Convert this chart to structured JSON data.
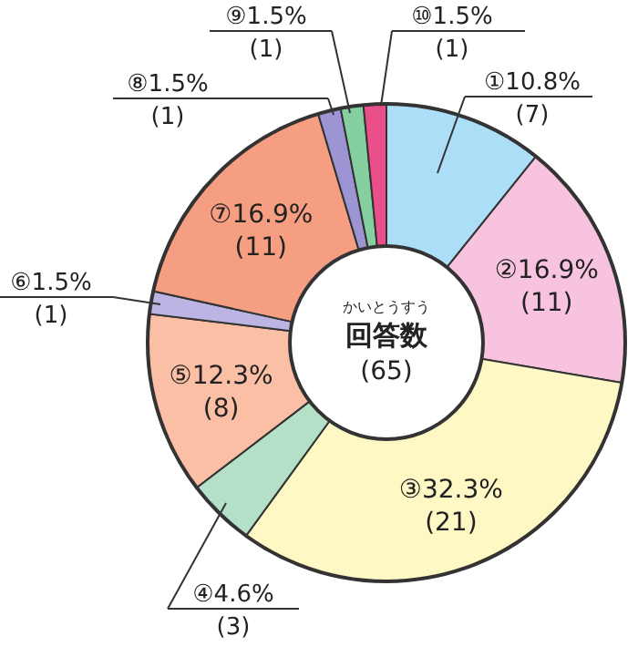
{
  "chart_data": {
    "type": "donut",
    "title": "回答数",
    "subtitle": "かいとうすう",
    "annotations": [
      "(65)"
    ],
    "categories": [
      "①",
      "②",
      "③",
      "④",
      "⑤",
      "⑥",
      "⑦",
      "⑧",
      "⑨",
      "⑩"
    ],
    "values": [
      7,
      11,
      21,
      3,
      8,
      1,
      11,
      1,
      1,
      1
    ],
    "value_labels": [
      "10.8%\n(7)",
      "16.9%\n(11)",
      "32.3%\n(21)",
      "4.6%\n(3)",
      "12.3%\n(8)",
      "1.5%\n(1)",
      "16.9%\n(11)",
      "1.5%\n(1)",
      "1.5%\n(1)",
      "1.5%\n(1)"
    ],
    "colors": [
      "#acdff7",
      "#f8c3de",
      "#fdf8c4",
      "#b5e0c8",
      "#fbbfa6",
      "#bcb4e2",
      "#f59e82",
      "#9d94d3",
      "#86cfa0",
      "#ea4f8a"
    ]
  }
}
